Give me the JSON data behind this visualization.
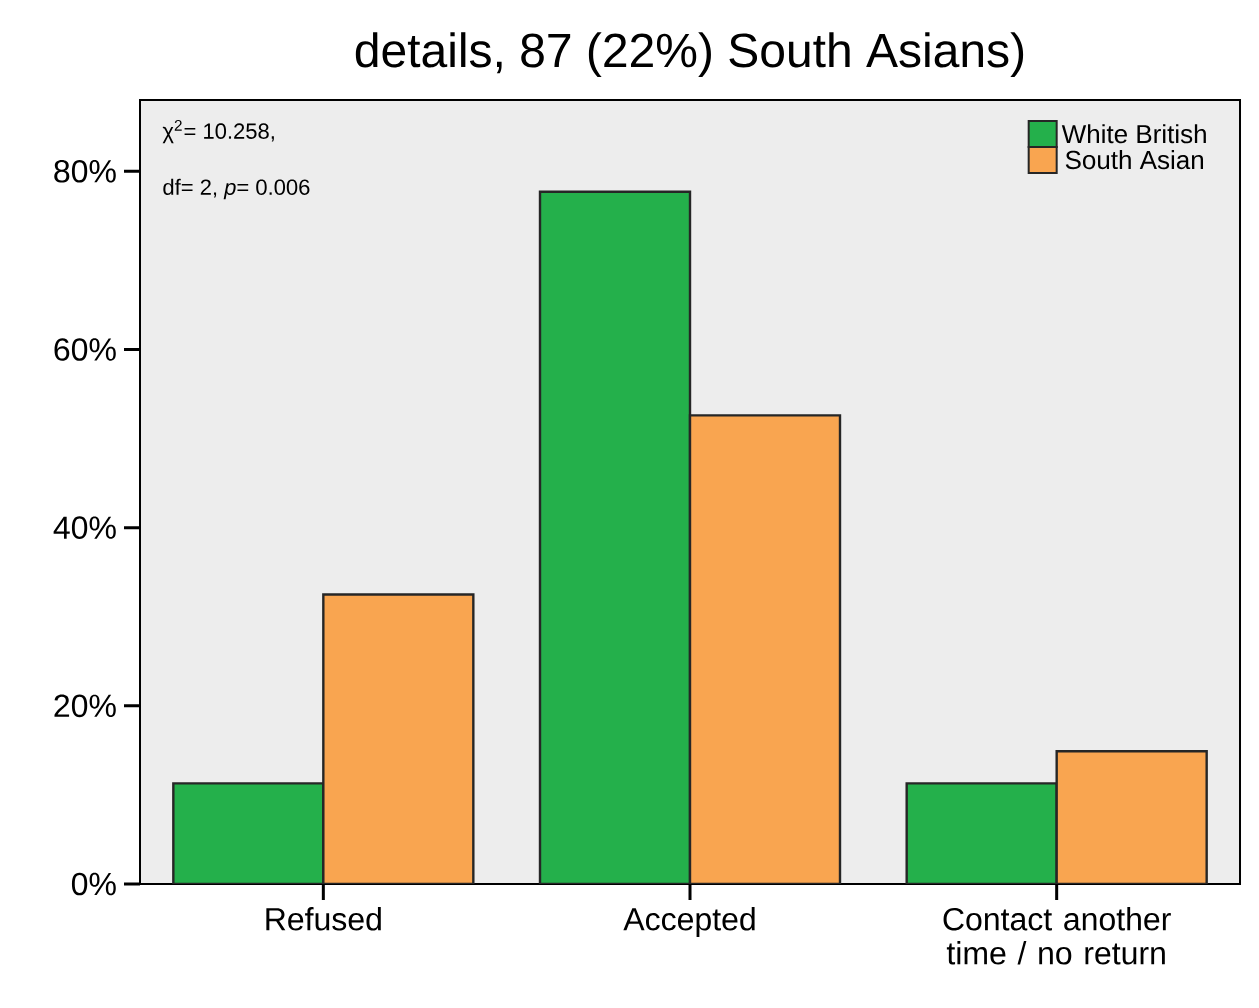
{
  "chart_data": {
    "type": "bar",
    "title": "details, 87 (22%) South Asians)",
    "categories": [
      "Refused",
      "Accepted",
      "Contact another time / no return"
    ],
    "series": [
      {
        "name": "White British",
        "color": "#24b04b",
        "values": [
          11.3,
          77.7,
          11.3
        ]
      },
      {
        "name": "South Asian",
        "color": "#f9a550",
        "values": [
          32.5,
          52.6,
          14.9
        ]
      }
    ],
    "ylim": [
      0,
      88
    ],
    "yticks": [
      {
        "value": 0,
        "label": "0%"
      },
      {
        "value": 20,
        "label": "20%"
      },
      {
        "value": 40,
        "label": "40%"
      },
      {
        "value": 60,
        "label": "60%"
      },
      {
        "value": 80,
        "label": "80%"
      }
    ],
    "annotations": [
      "χ$^{2}$= 10.258,",
      "df= 2, *p*= 0.006"
    ],
    "legend": "top right",
    "grid": false
  }
}
